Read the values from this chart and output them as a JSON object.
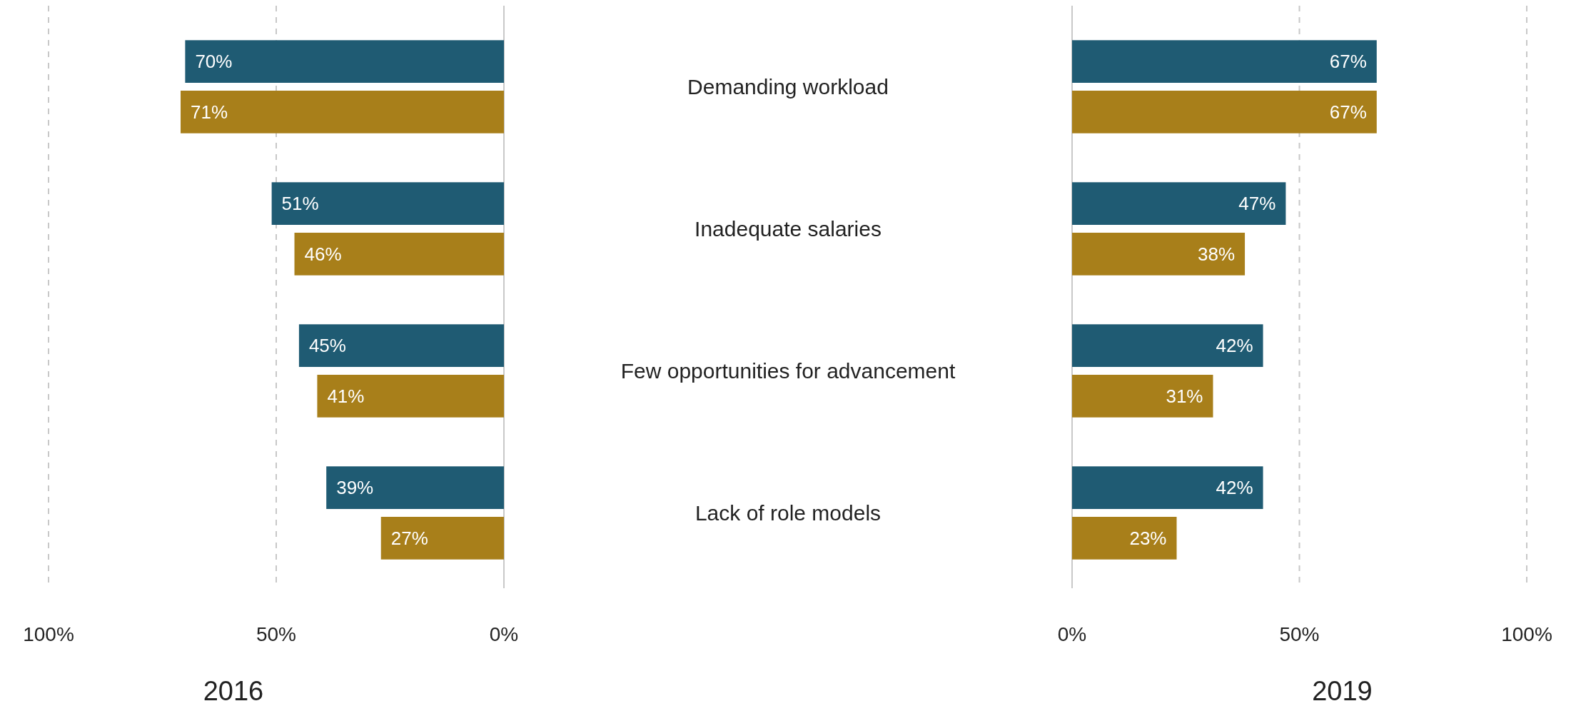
{
  "chart_data": [
    {
      "type": "bar",
      "orientation": "horizontal",
      "xlabel": "2016",
      "categories": [
        "Demanding workload",
        "Inadequate salaries",
        "Few opportunities for advancement",
        "Lack of role models"
      ],
      "series": [
        {
          "color": "#1f5b73",
          "values": [
            70,
            51,
            45,
            39
          ],
          "value_labels": [
            "70%",
            "51%",
            "45%",
            "39%"
          ]
        },
        {
          "color": "#a87f1a",
          "values": [
            71,
            46,
            41,
            27
          ],
          "value_labels": [
            "71%",
            "46%",
            "41%",
            "27%"
          ]
        }
      ],
      "xlim": [
        100,
        0
      ],
      "xticks": [
        {
          "value": 100,
          "label": "100%"
        },
        {
          "value": 50,
          "label": "50%"
        },
        {
          "value": 0,
          "label": "0%"
        }
      ],
      "grid": "x"
    },
    {
      "type": "bar",
      "orientation": "horizontal",
      "xlabel": "2019",
      "series": [
        {
          "color": "#1f5b73",
          "values": [
            67,
            47,
            42,
            42
          ],
          "value_labels": [
            "67%",
            "47%",
            "42%",
            "42%"
          ]
        },
        {
          "color": "#a87f1a",
          "values": [
            67,
            38,
            31,
            23
          ],
          "value_labels": [
            "67%",
            "38%",
            "31%",
            "23%"
          ]
        }
      ],
      "xlim": [
        0,
        100
      ],
      "xticks": [
        {
          "value": 0,
          "label": "0%"
        },
        {
          "value": 50,
          "label": "50%"
        },
        {
          "value": 100,
          "label": "100%"
        }
      ],
      "grid": "x"
    }
  ]
}
